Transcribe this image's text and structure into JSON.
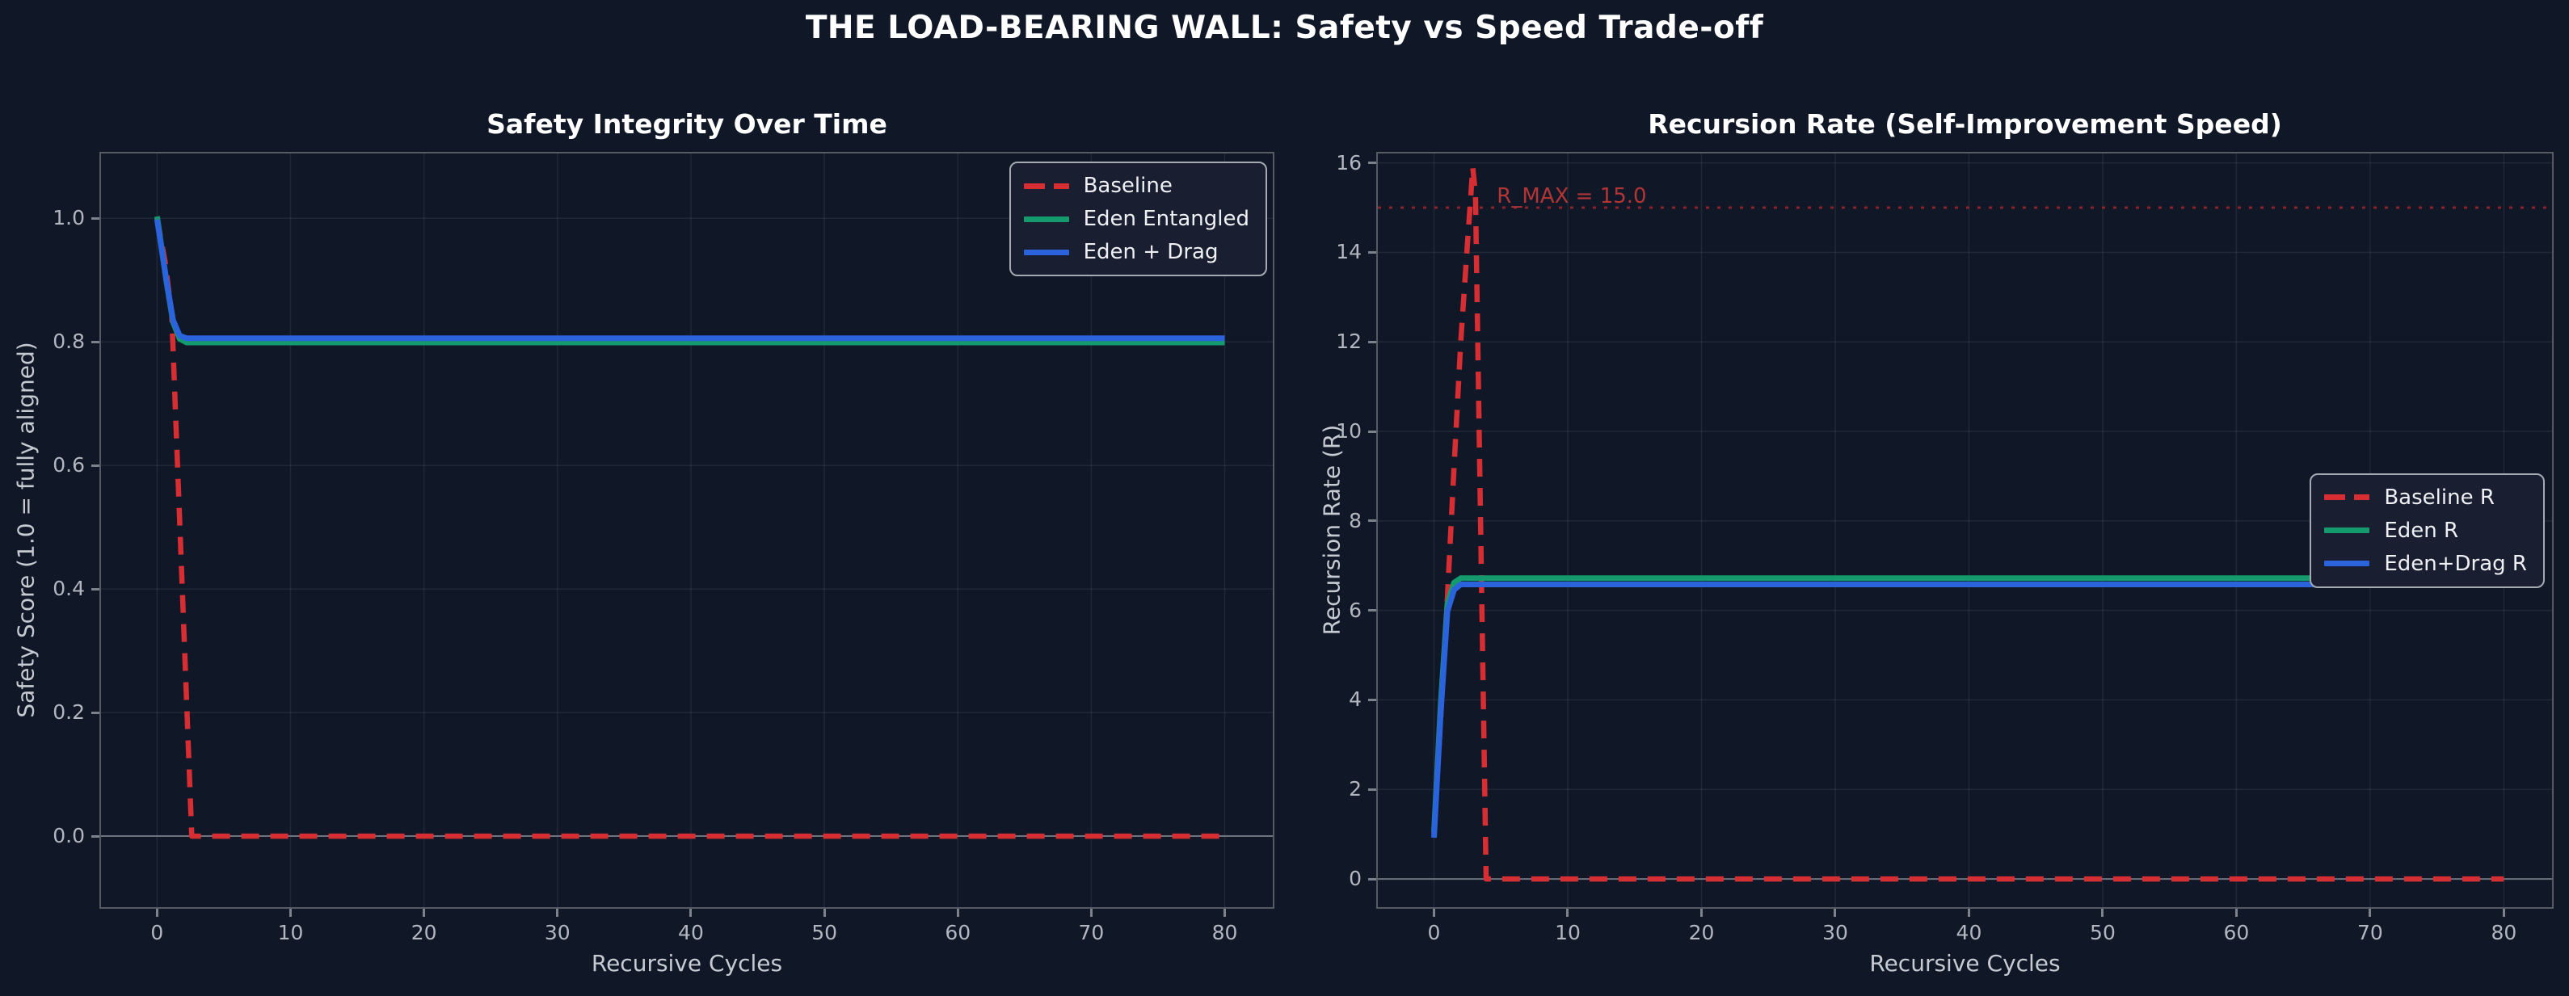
{
  "figure": {
    "suptitle": "THE LOAD-BEARING WALL: Safety vs Speed Trade-off",
    "background": "#101828"
  },
  "colors": {
    "baseline": "#d62e33",
    "eden": "#149a6d",
    "eden_drag": "#2a63dc",
    "grid": "rgba(255,255,255,0.07)",
    "zero_line": "#6e747d",
    "spine": "#565b63",
    "tick": "#7c828a",
    "tick_label": "#b2b7bf",
    "axis_label": "#c6cad1",
    "title": "#ffffff",
    "rmax_line": "#8e2129",
    "rmax_text": "#b23535",
    "legend_bg": "#191f30",
    "legend_border": "#a5aab2",
    "legend_text": "#eef0f3"
  },
  "chart_data": [
    {
      "type": "line",
      "title": "Safety Integrity Over Time",
      "xlabel": "Recursive Cycles",
      "ylabel": "Safety Score (1.0 = fully aligned)",
      "xlim": [
        -4.2,
        83.6
      ],
      "ylim": [
        -0.115,
        1.105
      ],
      "xticks": [
        0,
        10,
        20,
        30,
        40,
        50,
        60,
        70,
        80
      ],
      "xtick_labels": [
        "0",
        "10",
        "20",
        "30",
        "40",
        "50",
        "60",
        "70",
        "80"
      ],
      "yticks": [
        0.0,
        0.2,
        0.4,
        0.6,
        0.8,
        1.0
      ],
      "ytick_labels": [
        "0.0",
        "0.2",
        "0.4",
        "0.6",
        "0.8",
        "1.0"
      ],
      "grid": true,
      "zero_line": true,
      "legend": {
        "position": "upper right",
        "items": [
          {
            "label": "Baseline",
            "color": "baseline",
            "dashed": true
          },
          {
            "label": "Eden Entangled",
            "color": "eden",
            "dashed": false
          },
          {
            "label": "Eden + Drag",
            "color": "eden_drag",
            "dashed": false
          }
        ]
      },
      "series": [
        {
          "name": "Baseline",
          "color": "baseline",
          "dashed": true,
          "points": [
            [
              0,
              1.0
            ],
            [
              0.6,
              0.93
            ],
            [
              1.1,
              0.845
            ],
            [
              2.6,
              0.0
            ],
            [
              5,
              0.0
            ],
            [
              80,
              0.0
            ]
          ]
        },
        {
          "name": "Eden Entangled",
          "color": "eden",
          "dashed": false,
          "points": [
            [
              0,
              1.003
            ],
            [
              0.7,
              0.898
            ],
            [
              1.2,
              0.832
            ],
            [
              1.7,
              0.805
            ],
            [
              2.2,
              0.799
            ],
            [
              80,
              0.799
            ]
          ]
        },
        {
          "name": "Eden + Drag",
          "color": "eden_drag",
          "dashed": false,
          "points": [
            [
              0,
              0.998
            ],
            [
              0.7,
              0.9
            ],
            [
              1.2,
              0.835
            ],
            [
              1.7,
              0.81
            ],
            [
              2.2,
              0.806
            ],
            [
              80,
              0.806
            ]
          ]
        }
      ]
    },
    {
      "type": "line",
      "title": "Recursion Rate (Self-Improvement Speed)",
      "xlabel": "Recursive Cycles",
      "ylabel": "Recursion Rate (R)",
      "xlim": [
        -4.2,
        83.6
      ],
      "ylim": [
        -0.63,
        16.21
      ],
      "xticks": [
        0,
        10,
        20,
        30,
        40,
        50,
        60,
        70,
        80
      ],
      "xtick_labels": [
        "0",
        "10",
        "20",
        "30",
        "40",
        "50",
        "60",
        "70",
        "80"
      ],
      "yticks": [
        0,
        2,
        4,
        6,
        8,
        10,
        12,
        14,
        16
      ],
      "ytick_labels": [
        "0",
        "2",
        "4",
        "6",
        "8",
        "10",
        "12",
        "14",
        "16"
      ],
      "grid": true,
      "zero_line": true,
      "annotation": {
        "text": "R_MAX = 15.0",
        "y": 15.0,
        "label_x": 4.7,
        "label_y": 15.25
      },
      "legend": {
        "position": "center right",
        "items": [
          {
            "label": "Baseline R",
            "color": "baseline",
            "dashed": true
          },
          {
            "label": "Eden R",
            "color": "eden",
            "dashed": false
          },
          {
            "label": "Eden+Drag R",
            "color": "eden_drag",
            "dashed": false
          }
        ]
      },
      "series": [
        {
          "name": "Baseline R",
          "color": "baseline",
          "dashed": true,
          "points": [
            [
              0,
              1.0
            ],
            [
              0.5,
              3.6
            ],
            [
              1,
              6.3
            ],
            [
              1.5,
              9.2
            ],
            [
              2,
              12.0
            ],
            [
              2.5,
              14.2
            ],
            [
              2.9,
              15.9
            ],
            [
              3.1,
              15.3
            ],
            [
              3.9,
              0.0
            ],
            [
              5,
              0.0
            ],
            [
              80,
              0.0
            ]
          ]
        },
        {
          "name": "Eden R",
          "color": "eden",
          "dashed": false,
          "points": [
            [
              0,
              1.05
            ],
            [
              0.5,
              3.9
            ],
            [
              1,
              6.15
            ],
            [
              1.5,
              6.62
            ],
            [
              2,
              6.72
            ],
            [
              80,
              6.72
            ]
          ]
        },
        {
          "name": "Eden+Drag R",
          "color": "eden_drag",
          "dashed": false,
          "points": [
            [
              0,
              0.92
            ],
            [
              0.5,
              3.7
            ],
            [
              1,
              5.98
            ],
            [
              1.5,
              6.46
            ],
            [
              2,
              6.58
            ],
            [
              80,
              6.58
            ]
          ]
        }
      ]
    }
  ]
}
